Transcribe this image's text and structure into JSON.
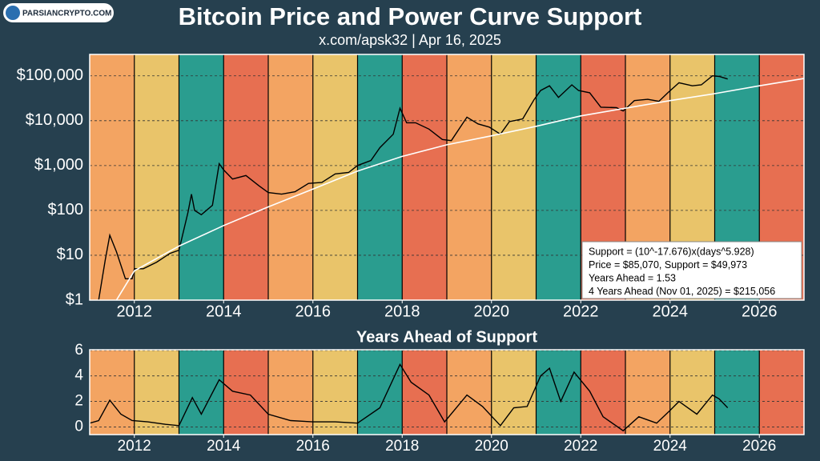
{
  "watermark": "PARSIANCRYPTO.COM",
  "chart_data": [
    {
      "type": "line",
      "title": "Bitcoin Price and Power Curve Support",
      "subtitle": "x.com/apsk32 | Apr 16, 2025",
      "log_scale": true,
      "grid": true,
      "band_colors": [
        "#f3a462",
        "#e9c46a",
        "#2a9d8f",
        "#e76f51"
      ],
      "xlim": [
        2011,
        2027
      ],
      "xticks": [
        2012,
        2014,
        2016,
        2018,
        2020,
        2022,
        2024,
        2026
      ],
      "ylim": [
        1,
        300000
      ],
      "yticks": [
        {
          "value": 1,
          "label": "$1"
        },
        {
          "value": 10,
          "label": "$10"
        },
        {
          "value": 100,
          "label": "$100"
        },
        {
          "value": 1000,
          "label": "$1,000"
        },
        {
          "value": 10000,
          "label": "$10,000"
        },
        {
          "value": 100000,
          "label": "$100,000"
        }
      ],
      "series": [
        {
          "color": "#000000",
          "x": [
            2011.2,
            2011.35,
            2011.45,
            2011.6,
            2011.8,
            2011.95,
            2012.0,
            2012.2,
            2012.5,
            2012.8,
            2013.0,
            2013.2,
            2013.28,
            2013.35,
            2013.5,
            2013.75,
            2013.9,
            2014.0,
            2014.2,
            2014.5,
            2014.8,
            2015.0,
            2015.3,
            2015.6,
            2015.9,
            2016.2,
            2016.5,
            2016.8,
            2017.0,
            2017.3,
            2017.5,
            2017.8,
            2017.95,
            2018.1,
            2018.3,
            2018.6,
            2018.9,
            2019.1,
            2019.45,
            2019.7,
            2019.95,
            2020.2,
            2020.4,
            2020.7,
            2020.95,
            2021.1,
            2021.3,
            2021.5,
            2021.8,
            2021.95,
            2022.2,
            2022.45,
            2022.8,
            2022.95,
            2023.2,
            2023.5,
            2023.75,
            2023.95,
            2024.2,
            2024.5,
            2024.7,
            2024.95,
            2025.1,
            2025.29
          ],
          "values": [
            1,
            8,
            28,
            12,
            3,
            3,
            5,
            5,
            7,
            11,
            13,
            90,
            230,
            100,
            80,
            130,
            1100,
            800,
            500,
            600,
            350,
            250,
            230,
            260,
            400,
            420,
            650,
            700,
            1000,
            1300,
            2500,
            5000,
            19000,
            9000,
            9000,
            6500,
            3800,
            3600,
            12000,
            8500,
            7200,
            5000,
            9500,
            11000,
            29000,
            47000,
            60000,
            33000,
            63000,
            47000,
            42000,
            20000,
            19500,
            16500,
            28000,
            30000,
            27000,
            42000,
            70000,
            60000,
            63000,
            100000,
            97000,
            85000
          ]
        },
        {
          "color": "#ffffff",
          "x": [
            2011.6,
            2012,
            2013,
            2014,
            2015,
            2016,
            2017,
            2018,
            2019,
            2020,
            2021,
            2022,
            2023,
            2024,
            2025,
            2026,
            2027
          ],
          "values": [
            1,
            4.5,
            16,
            46,
            120,
            300,
            750,
            1600,
            2900,
            4600,
            7500,
            12800,
            19000,
            28000,
            40000,
            60000,
            87000
          ]
        }
      ],
      "annotations": [
        "Support = (10^-17.676)x(days^5.928)",
        "Price = $85,070, Support = $49,973",
        "Years Ahead = 1.53",
        "4 Years Ahead (Nov 01, 2025) = $215,056"
      ]
    },
    {
      "type": "line",
      "title": "Years Ahead of Support",
      "grid": true,
      "band_colors": [
        "#f3a462",
        "#e9c46a",
        "#2a9d8f",
        "#e76f51"
      ],
      "xlim": [
        2011,
        2027
      ],
      "xticks": [
        2012,
        2014,
        2016,
        2018,
        2020,
        2022,
        2024,
        2026
      ],
      "ylim": [
        -0.6,
        6.05
      ],
      "yticks": [
        0,
        2,
        4,
        6
      ],
      "series": [
        {
          "color": "#000000",
          "x": [
            2011.0,
            2011.2,
            2011.45,
            2011.7,
            2011.95,
            2012.3,
            2012.7,
            2013.0,
            2013.3,
            2013.5,
            2013.9,
            2014.2,
            2014.6,
            2015.0,
            2015.5,
            2016.0,
            2016.5,
            2017.0,
            2017.5,
            2017.95,
            2018.2,
            2018.6,
            2018.95,
            2019.45,
            2019.8,
            2020.2,
            2020.5,
            2020.8,
            2021.1,
            2021.3,
            2021.55,
            2021.85,
            2022.2,
            2022.5,
            2022.95,
            2023.3,
            2023.7,
            2024.0,
            2024.2,
            2024.6,
            2024.95,
            2025.1,
            2025.29
          ],
          "values": [
            0.3,
            0.5,
            2.1,
            1.0,
            0.5,
            0.4,
            0.2,
            0.1,
            2.3,
            1.0,
            3.7,
            2.8,
            2.5,
            1.0,
            0.5,
            0.4,
            0.4,
            0.3,
            1.5,
            4.9,
            3.5,
            2.5,
            0.4,
            2.5,
            1.6,
            0.1,
            1.5,
            1.6,
            4.0,
            4.6,
            2.0,
            4.3,
            2.8,
            0.8,
            -0.3,
            0.8,
            0.3,
            1.3,
            2.0,
            1.0,
            2.5,
            2.2,
            1.5
          ]
        }
      ]
    }
  ]
}
